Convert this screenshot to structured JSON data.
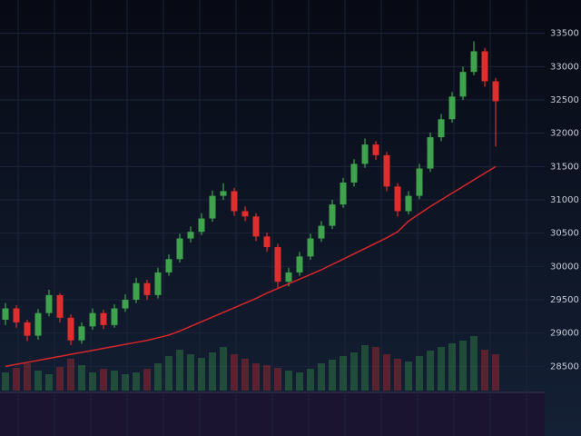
{
  "chart_data": {
    "type": "candlestick",
    "open": [
      29200,
      29370,
      29160,
      28960,
      29300,
      29570,
      29230,
      28890,
      29100,
      29300,
      29120,
      29370,
      29500,
      29750,
      29570,
      29910,
      30110,
      30420,
      30520,
      30720,
      31060,
      31130,
      30830,
      30750,
      30450,
      30290,
      29770,
      29910,
      30150,
      30420,
      30610,
      30930,
      31260,
      31540,
      31830,
      31670,
      31200,
      30830,
      31060,
      31470,
      31940,
      32210,
      32550,
      32920,
      33230,
      32780
    ],
    "high": [
      29450,
      29420,
      29200,
      29360,
      29650,
      29600,
      29280,
      29160,
      29370,
      29350,
      29430,
      29580,
      29830,
      29800,
      29980,
      30180,
      30490,
      30600,
      30800,
      31140,
      31250,
      31180,
      30900,
      30800,
      30510,
      30340,
      29980,
      30220,
      30490,
      30680,
      31000,
      31330,
      31610,
      31920,
      31880,
      31720,
      31250,
      31130,
      31540,
      32010,
      32290,
      32620,
      33000,
      33380,
      33280,
      32830
    ],
    "low": [
      29120,
      29080,
      28880,
      28900,
      29250,
      29160,
      28820,
      28840,
      29050,
      29060,
      29080,
      29320,
      29450,
      29500,
      29520,
      29860,
      30060,
      30360,
      30470,
      30670,
      31000,
      30760,
      30680,
      30380,
      30220,
      29680,
      29700,
      29860,
      30100,
      30370,
      30560,
      30880,
      31200,
      31480,
      31600,
      31130,
      30750,
      30780,
      31010,
      31420,
      31880,
      32160,
      32500,
      32870,
      32700,
      31800
    ],
    "close": [
      29370,
      29160,
      28960,
      29300,
      29570,
      29230,
      28890,
      29100,
      29300,
      29120,
      29370,
      29500,
      29750,
      29570,
      29910,
      30110,
      30420,
      30520,
      30720,
      31060,
      31130,
      30830,
      30750,
      30450,
      30290,
      29770,
      29910,
      30150,
      30420,
      30610,
      30930,
      31260,
      31540,
      31830,
      31670,
      31200,
      30830,
      31060,
      31470,
      31940,
      32210,
      32550,
      32920,
      33230,
      32780,
      32480
    ],
    "ma": [
      28500,
      28530,
      28560,
      28590,
      28620,
      28650,
      28680,
      28710,
      28740,
      28770,
      28800,
      28830,
      28860,
      28890,
      28930,
      28970,
      29030,
      29100,
      29170,
      29240,
      29310,
      29380,
      29450,
      29520,
      29600,
      29670,
      29740,
      29810,
      29880,
      29950,
      30030,
      30110,
      30190,
      30270,
      30350,
      30430,
      30520,
      30680,
      30790,
      30900,
      31000,
      31100,
      31200,
      31300,
      31400,
      31500
    ],
    "volume": [
      20,
      25,
      30,
      22,
      18,
      26,
      35,
      28,
      20,
      24,
      22,
      18,
      20,
      24,
      30,
      38,
      45,
      40,
      36,
      42,
      48,
      40,
      35,
      30,
      28,
      25,
      22,
      20,
      24,
      30,
      34,
      38,
      42,
      50,
      48,
      40,
      35,
      32,
      38,
      44,
      48,
      52,
      55,
      60,
      45,
      40
    ],
    "up_color": "#3fa34d",
    "down_color": "#e02d2d",
    "ma_color": "#d8262a",
    "ylim": [
      28000,
      34000
    ],
    "yticks": [
      28500,
      29000,
      29500,
      30000,
      30500,
      31000,
      31500,
      32000,
      32500,
      33000,
      33500
    ],
    "vlim": [
      0,
      100
    ],
    "grid": true
  }
}
